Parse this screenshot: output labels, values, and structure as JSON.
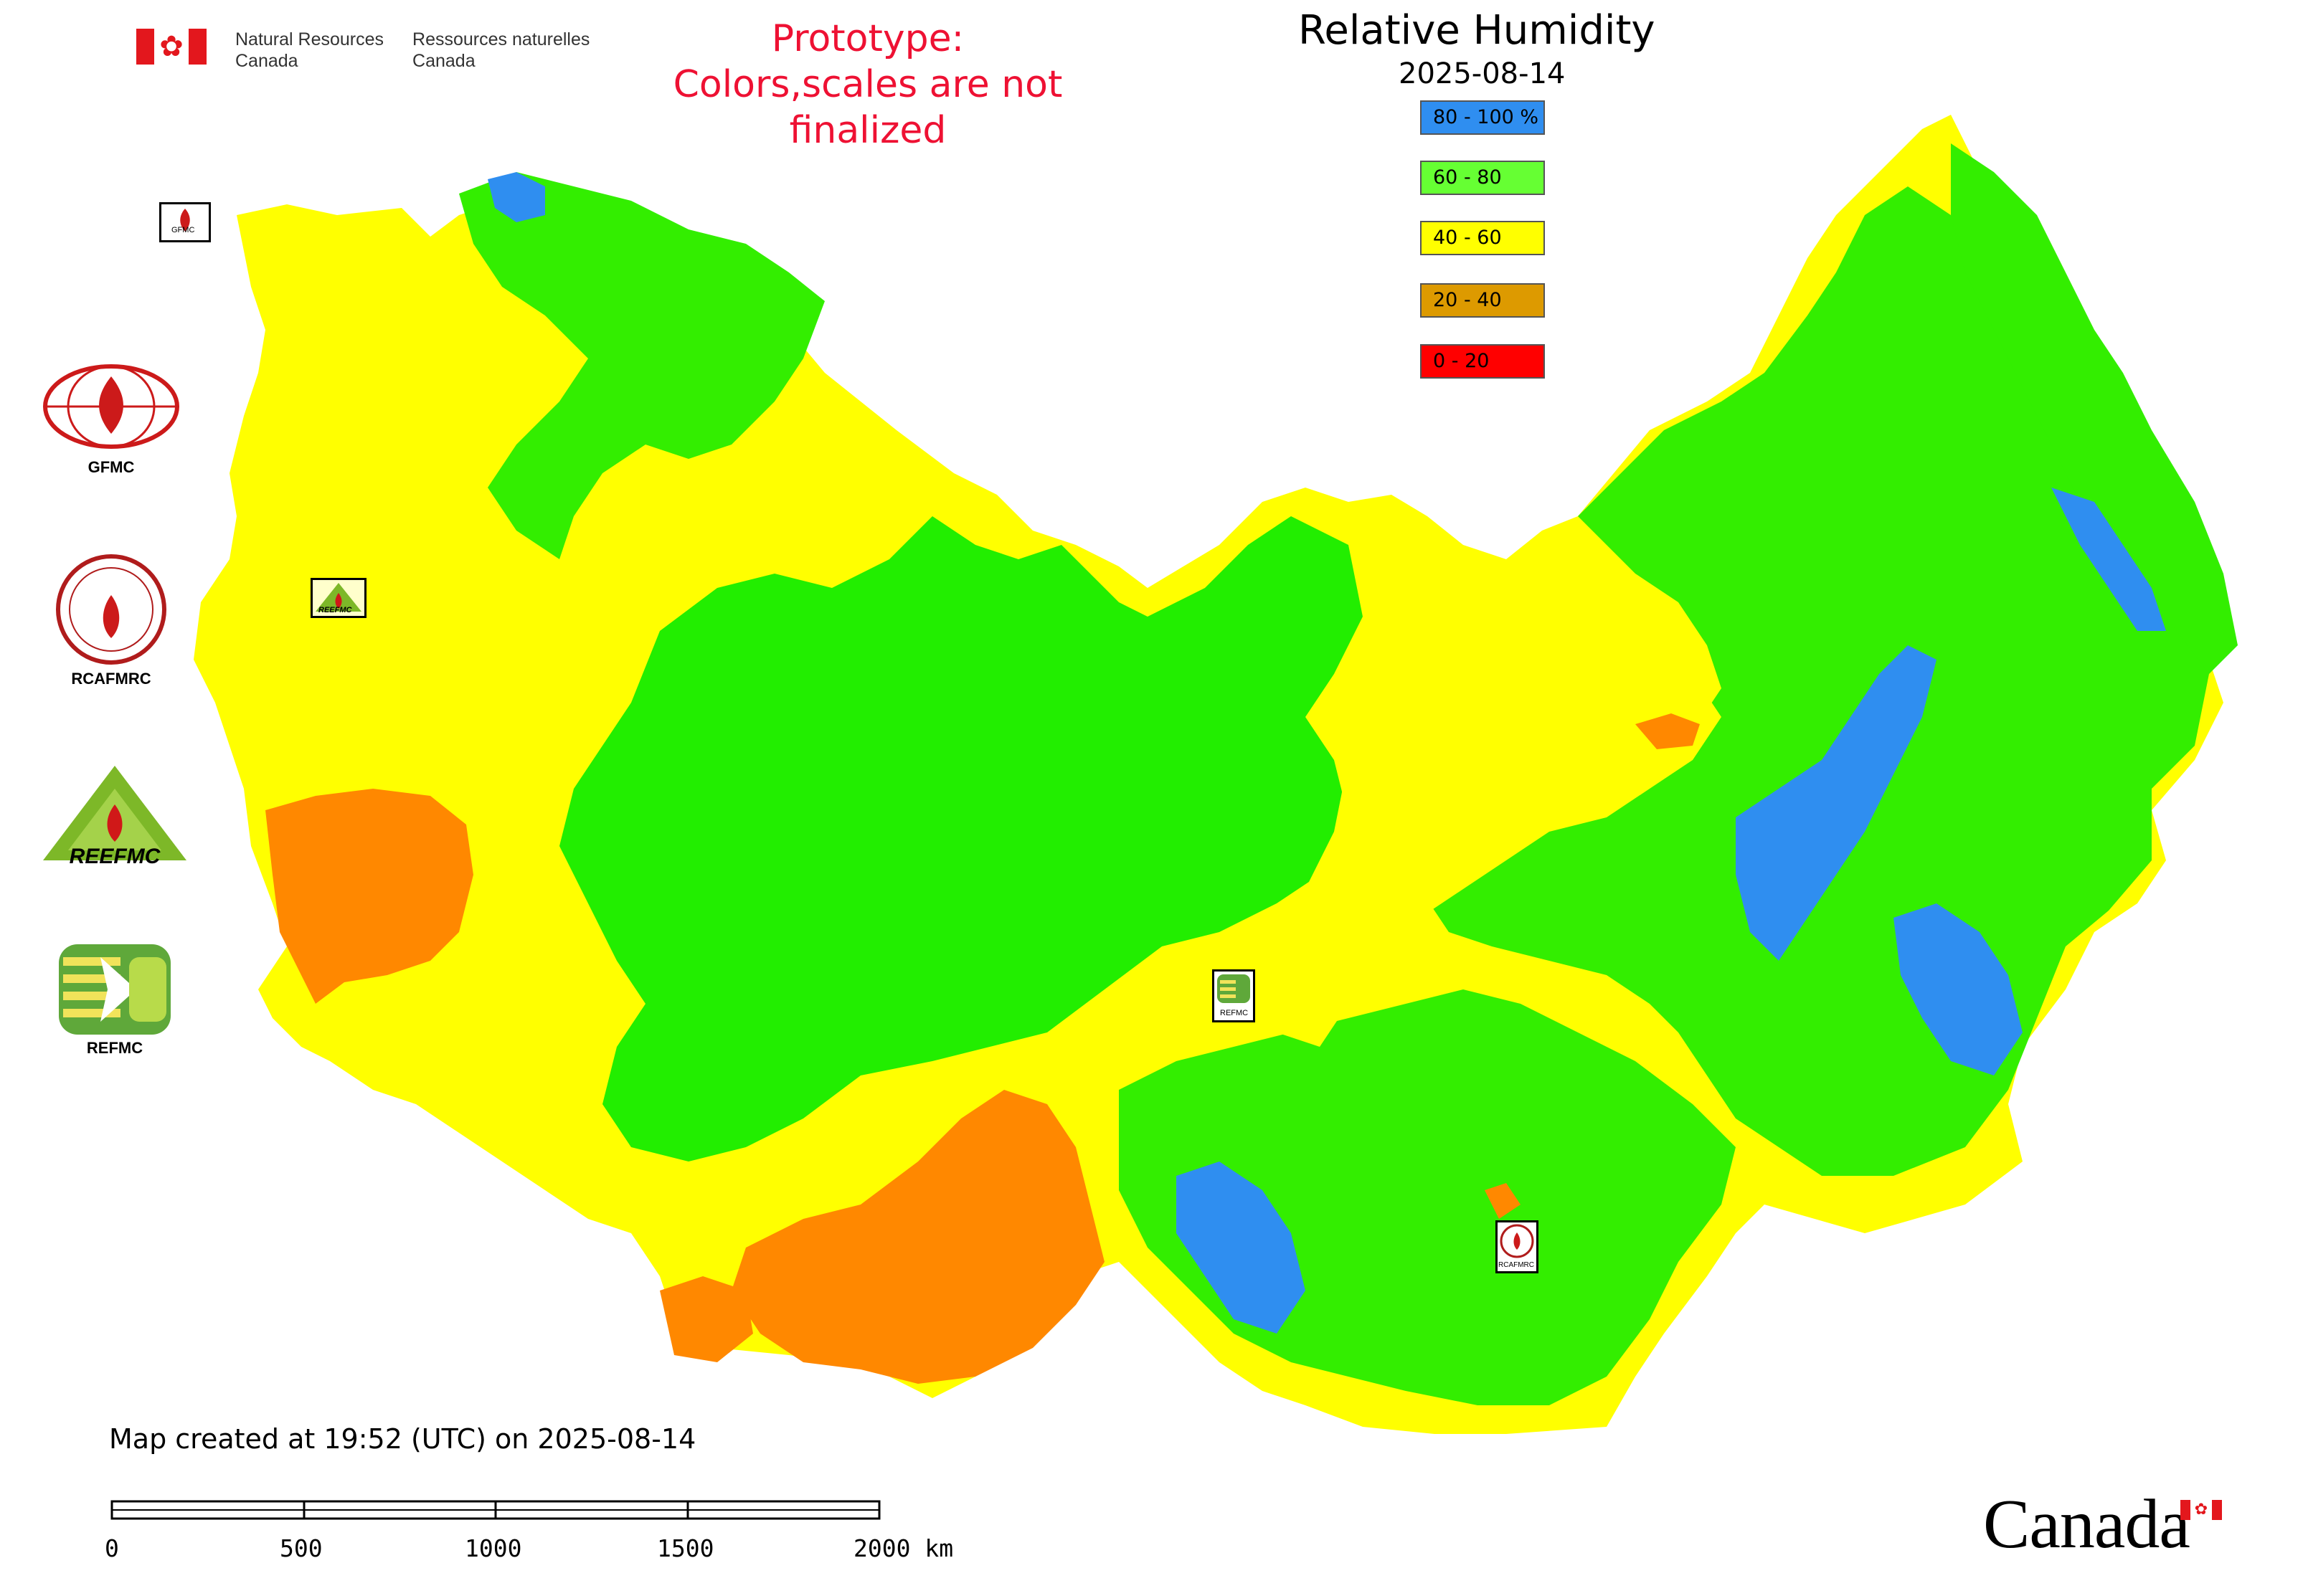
{
  "header": {
    "dept_en_1": "Natural Resources",
    "dept_en_2": "Canada",
    "dept_fr_1": "Ressources naturelles",
    "dept_fr_2": "Canada",
    "prototype_line1": "Prototype:",
    "prototype_line2": "Colors,scales are not finalized"
  },
  "map": {
    "title": "Relative Humidity",
    "date": "2025-08-14",
    "legend": [
      {
        "label": "80 - 100 %",
        "color": "#2f8ef0"
      },
      {
        "label": "60 - 80",
        "color": "#66ff33"
      },
      {
        "label": "40 - 60",
        "color": "#ffff00"
      },
      {
        "label": "20 - 40",
        "color": "#dd9a00"
      },
      {
        "label": "0 - 20",
        "color": "#ff0000"
      }
    ],
    "region_colors": {
      "blue": "#2f8ef0",
      "green": "#33ee00",
      "yellow": "#ffff00",
      "orange": "#ff8800",
      "red": "#ff0000"
    }
  },
  "side_logos": [
    {
      "label": "GFMC",
      "icon": "gfmc-logo-icon"
    },
    {
      "label": "RCAFMRC",
      "icon": "rcafmrc-logo-icon"
    },
    {
      "label": "",
      "icon": "reefmc-logo-icon",
      "text": "REEFMC"
    },
    {
      "label": "REFMC",
      "icon": "refmc-logo-icon"
    }
  ],
  "marker_labels": {
    "gfmc": "GFMC",
    "reefmc": "REEFMC",
    "refmc": "REFMC",
    "rcafmrc": "RCAFMRC"
  },
  "footer": {
    "created": "Map created at 19:52 (UTC) on 2025-08-14",
    "scale_ticks": [
      "0",
      "500",
      "1000",
      "1500",
      "2000 km"
    ],
    "canada_wordmark": "Canada"
  }
}
